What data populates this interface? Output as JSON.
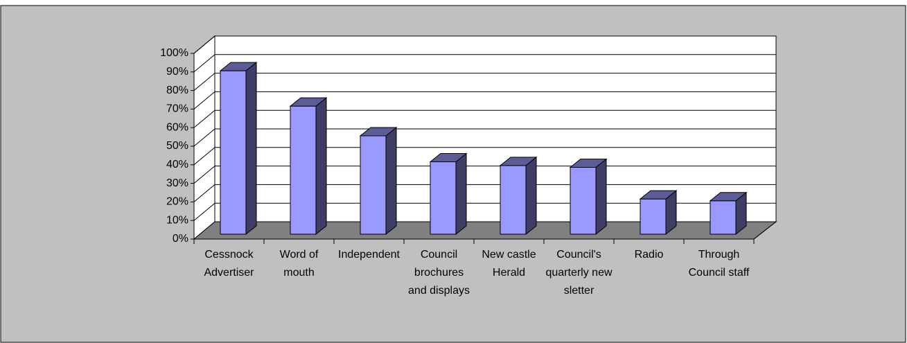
{
  "chart_data": {
    "type": "bar3d",
    "categories": [
      "Cessnock Advertiser",
      "Word of mouth",
      "Independent",
      "Council brochures and displays",
      "New castle Herald",
      "Council's quarterly new sletter",
      "Radio",
      "Through Council staff"
    ],
    "values": [
      88,
      69,
      53,
      39,
      37,
      36,
      19,
      18
    ],
    "color": "#9999ff",
    "ylim": [
      0,
      100
    ],
    "yticks": [
      {
        "value": 0,
        "label": "0%"
      },
      {
        "value": 10,
        "label": "10%"
      },
      {
        "value": 20,
        "label": "20%"
      },
      {
        "value": 30,
        "label": "30%"
      },
      {
        "value": 40,
        "label": "40%"
      },
      {
        "value": 50,
        "label": "50%"
      },
      {
        "value": 60,
        "label": "60%"
      },
      {
        "value": 70,
        "label": "70%"
      },
      {
        "value": 80,
        "label": "80%"
      },
      {
        "value": 90,
        "label": "90%"
      },
      {
        "value": 100,
        "label": "100%"
      }
    ],
    "grid": true
  }
}
